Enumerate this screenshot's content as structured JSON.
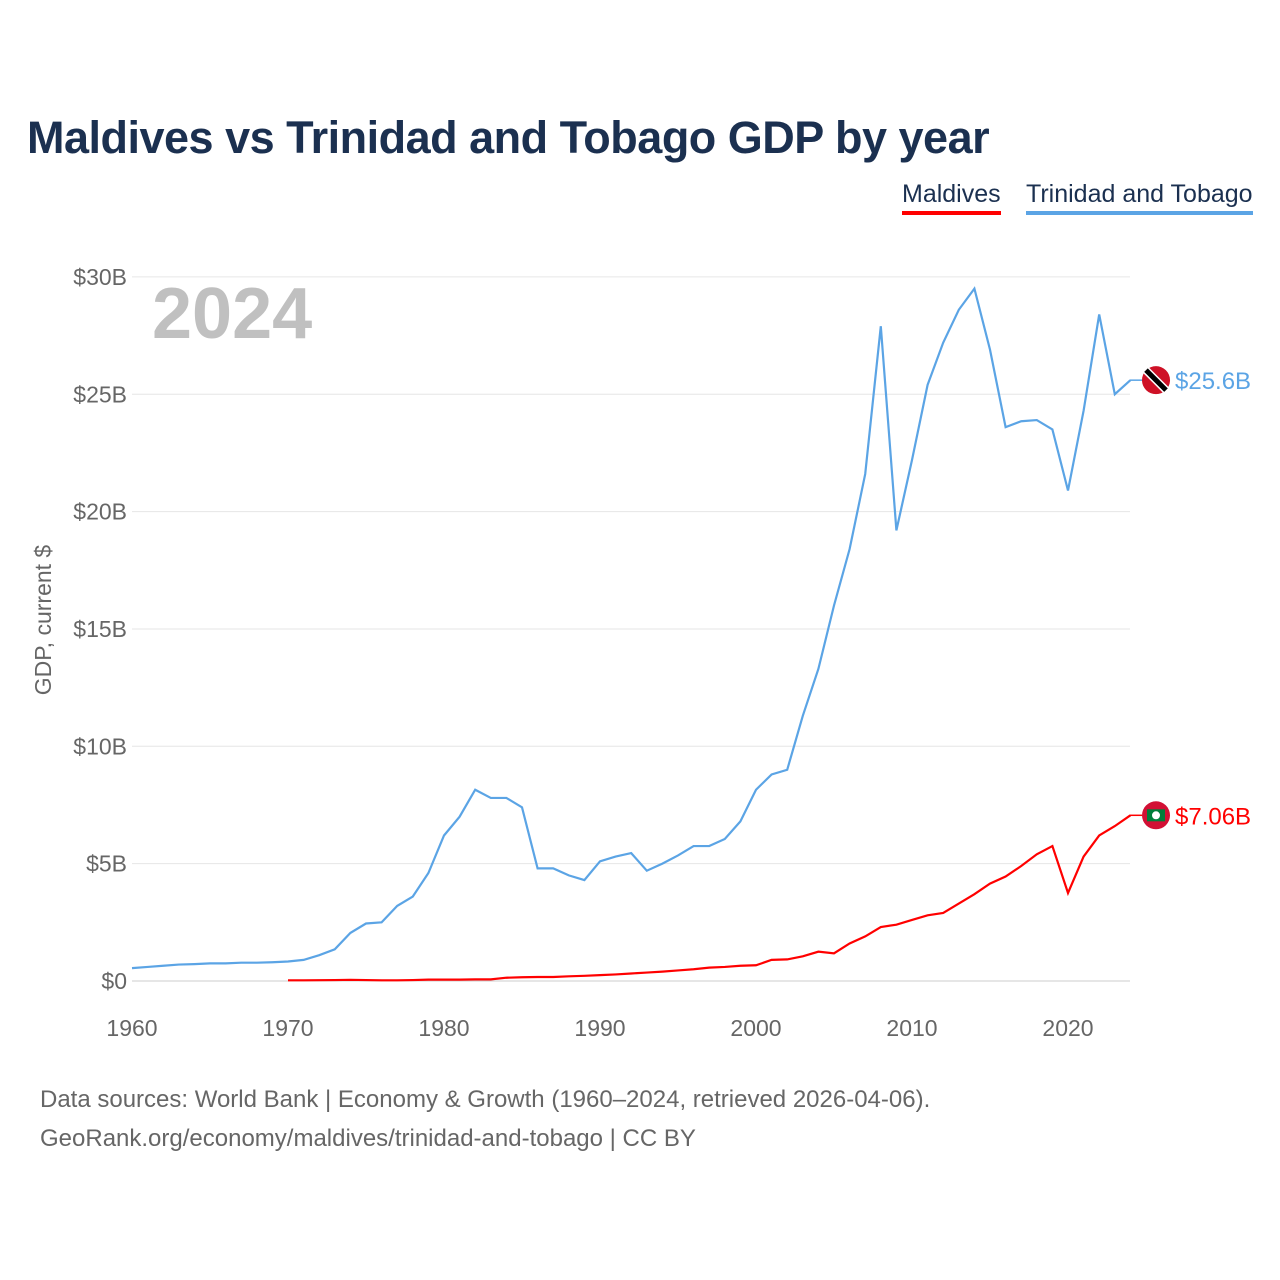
{
  "chart_data": {
    "type": "line",
    "title": "Maldives vs Trinidad and Tobago GDP by year",
    "year_label": "2024",
    "xlabel": "",
    "ylabel": "GDP, current $",
    "xlim": [
      1960,
      2024
    ],
    "ylim": [
      0,
      30
    ],
    "x_ticks": [
      "1960",
      "1970",
      "1980",
      "1990",
      "2000",
      "2010",
      "2020"
    ],
    "y_ticks": [
      "$0",
      "$5B",
      "$10B",
      "$15B",
      "$20B",
      "$25B",
      "$30B"
    ],
    "legend_position": "top-right",
    "series": [
      {
        "name": "Maldives",
        "color": "#ff0000",
        "end_label": "$7.06B",
        "start_year": 1970,
        "values": [
          0.03,
          0.03,
          0.035,
          0.04,
          0.05,
          0.04,
          0.03,
          0.03,
          0.04,
          0.06,
          0.06,
          0.06,
          0.07,
          0.07,
          0.14,
          0.16,
          0.17,
          0.17,
          0.2,
          0.22,
          0.25,
          0.28,
          0.32,
          0.36,
          0.4,
          0.45,
          0.5,
          0.57,
          0.6,
          0.65,
          0.67,
          0.9,
          0.92,
          1.05,
          1.25,
          1.18,
          1.6,
          1.9,
          2.3,
          2.4,
          2.6,
          2.8,
          2.9,
          3.3,
          3.7,
          4.15,
          4.45,
          4.9,
          5.4,
          5.75,
          3.75,
          5.3,
          6.2,
          6.6,
          7.06
        ]
      },
      {
        "name": "Trinidad and Tobago",
        "color": "#5ba4e5",
        "end_label": "$25.6B",
        "start_year": 1960,
        "values": [
          0.55,
          0.6,
          0.65,
          0.7,
          0.72,
          0.75,
          0.75,
          0.78,
          0.78,
          0.8,
          0.83,
          0.9,
          1.1,
          1.35,
          2.05,
          2.45,
          2.5,
          3.2,
          3.6,
          4.6,
          6.2,
          7.0,
          8.15,
          7.8,
          7.8,
          7.4,
          4.8,
          4.8,
          4.5,
          4.3,
          5.1,
          5.3,
          5.45,
          4.7,
          5.0,
          5.35,
          5.75,
          5.75,
          6.05,
          6.8,
          8.15,
          8.8,
          9.0,
          11.3,
          13.3,
          16.0,
          18.4,
          21.6,
          27.9,
          19.2,
          22.2,
          25.4,
          27.2,
          28.6,
          29.5,
          26.9,
          23.6,
          23.85,
          23.9,
          23.5,
          20.9,
          24.3,
          28.4,
          25.0,
          25.6
        ]
      }
    ]
  },
  "footer": {
    "line1": "Data sources: World Bank | Economy & Growth (1960–2024, retrieved 2026-04-06).",
    "line2": "GeoRank.org/economy/maldives/trinidad-and-tobago | CC BY"
  }
}
